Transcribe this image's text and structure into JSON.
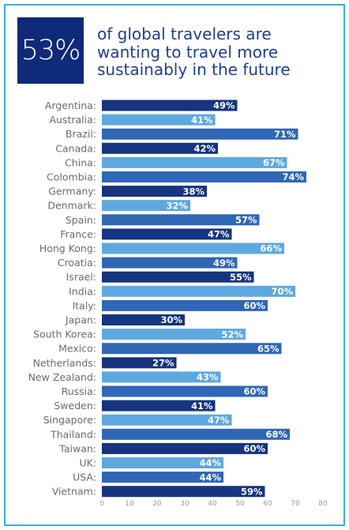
{
  "header": {
    "stat": "53%",
    "lines": [
      "of global travelers are",
      "wanting to travel more",
      "sustainably in the future"
    ]
  },
  "colors": {
    "border": "#3aaee0",
    "stat_box": "#0e2a78",
    "headline_text": "#1f3f8f",
    "bar_dark": "#16347f",
    "bar_light": "#5ea8e0",
    "bar_mid": "#2f67b6"
  },
  "chart_data": {
    "type": "bar",
    "orientation": "horizontal",
    "categories": [
      "Argentina:",
      "Australia:",
      "Brazil:",
      "Canada:",
      "China:",
      "Colombia:",
      "Germany:",
      "Denmark:",
      "Spain:",
      "France:",
      "Hong Kong:",
      "Croatia:",
      "Israel:",
      "India:",
      "Italy:",
      "Japan:",
      "South Korea:",
      "Mexico:",
      "Netherlands:",
      "New Zealand:",
      "Russia:",
      "Sweden:",
      "Singapore:",
      "Thailand:",
      "Taiwan:",
      "UK:",
      "USA:",
      "Vietnam:"
    ],
    "values": [
      49,
      41,
      71,
      42,
      67,
      74,
      38,
      32,
      57,
      47,
      66,
      49,
      55,
      70,
      60,
      30,
      52,
      65,
      27,
      43,
      60,
      41,
      47,
      68,
      60,
      44,
      44,
      59
    ],
    "data_labels": [
      "49%",
      "41%",
      "71%",
      "42%",
      "67%",
      "74%",
      "38%",
      "32%",
      "57%",
      "47%",
      "66%",
      "49%",
      "55%",
      "70%",
      "60%",
      "30%",
      "52%",
      "65%",
      "27%",
      "43%",
      "60%",
      "41%",
      "47%",
      "68%",
      "60%",
      "44%",
      "44%",
      "59%"
    ],
    "xlim": [
      0,
      80
    ],
    "xticks": [
      0,
      10,
      20,
      30,
      40,
      50,
      60,
      70,
      80
    ],
    "xtick_labels": [
      "0",
      "10",
      "20",
      "30",
      "40",
      "50",
      "60",
      "70",
      "80"
    ],
    "bar_color_pattern": [
      "dark",
      "light",
      "mid"
    ],
    "grid": false,
    "legend": "none"
  }
}
